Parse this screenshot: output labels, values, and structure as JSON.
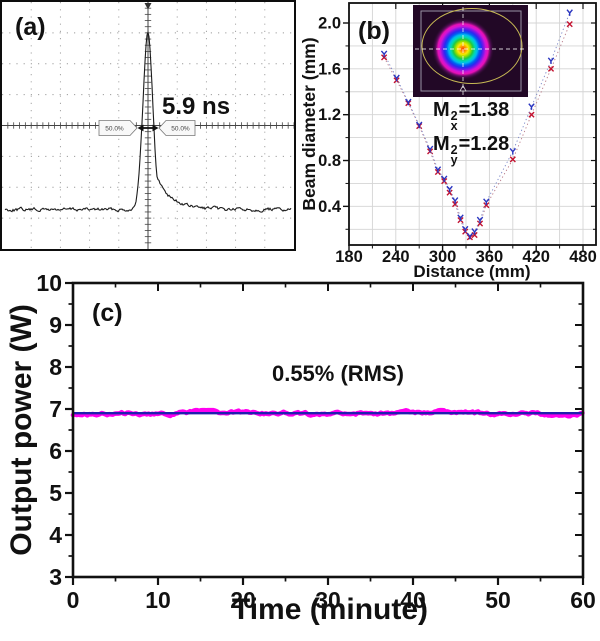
{
  "panel_a": {
    "label": "(a)",
    "pulse_width": "5.9 ns",
    "cursor_left": "50.0%",
    "cursor_right": "50.0%"
  },
  "panel_b": {
    "label": "(b)",
    "ylabel": "Beam diameter (mm)",
    "xlabel": "Distance (mm)",
    "m2x": {
      "base": "M",
      "sup": "2",
      "sub": "x",
      "eq": "=1.38"
    },
    "m2y": {
      "base": "M",
      "sup": "2",
      "sub": "y",
      "eq": "=1.28"
    }
  },
  "panel_c": {
    "label": "(c)",
    "ylabel": "Output power (W)",
    "xlabel": "Time (minute)",
    "stability": "0.55% (RMS)"
  },
  "colors": {
    "trace": "#1c1c1c",
    "series_x": "#c41230",
    "series_y": "#2a35c0",
    "connector_x": "#b87a88",
    "connector_y": "#7a86c8",
    "power_band": "#ff00f0",
    "fit_line": "#1f1fae",
    "grid_b": "#d4d4d4",
    "frame": "#111111"
  },
  "chart_data": [
    {
      "panel": "a",
      "type": "line",
      "content": "oscilloscope single pulse trace",
      "xlabel": "",
      "ylabel": "",
      "grid_divisions": {
        "x": 10,
        "y": 8
      },
      "pulse": {
        "fwhm_label": "5.9 ns",
        "half_level_labels": [
          "50.0%",
          "50.0%"
        ],
        "baseline_frac": 0.84,
        "peak_frac": 0.125,
        "center_frac": 0.5
      }
    },
    {
      "panel": "b",
      "type": "scatter",
      "xlabel": "Distance (mm)",
      "ylabel": "Beam diameter (mm)",
      "xlim": [
        180,
        497
      ],
      "ylim": [
        0.06,
        2.18
      ],
      "xticks": [
        180,
        240,
        300,
        360,
        420,
        480
      ],
      "yticks": [
        0.4,
        0.8,
        1.2,
        1.6,
        2.0
      ],
      "x_minor_step": 30,
      "y_minor_step": 0.2,
      "grid": true,
      "x": [
        225,
        241,
        256,
        270,
        284,
        294,
        302,
        309,
        316,
        323,
        329,
        335,
        341,
        348,
        356,
        390,
        414,
        439,
        463
      ],
      "series": [
        {
          "name": "Mx2",
          "marker": "x",
          "color": "#c41230",
          "values": [
            1.7,
            1.5,
            1.3,
            1.1,
            0.88,
            0.7,
            0.62,
            0.52,
            0.42,
            0.28,
            0.18,
            0.13,
            0.15,
            0.25,
            0.41,
            0.81,
            1.2,
            1.6,
            1.99
          ]
        },
        {
          "name": "My2",
          "marker": "Y",
          "color": "#2a35c0",
          "values": [
            1.73,
            1.52,
            1.31,
            1.11,
            0.9,
            0.72,
            0.64,
            0.55,
            0.45,
            0.3,
            0.2,
            0.14,
            0.18,
            0.28,
            0.44,
            0.88,
            1.27,
            1.67,
            2.09
          ]
        }
      ],
      "annotations": [
        "Mx2=1.38",
        "My2=1.28"
      ]
    },
    {
      "panel": "c",
      "type": "line",
      "xlabel": "Time (minute)",
      "ylabel": "Output power (W)",
      "xlim": [
        0,
        60
      ],
      "ylim": [
        3,
        10
      ],
      "xticks": [
        0,
        10,
        20,
        30,
        40,
        50,
        60
      ],
      "yticks": [
        3,
        4,
        5,
        6,
        7,
        8,
        9,
        10
      ],
      "x_minor_step": 5,
      "y_minor_step": 0.5,
      "grid": false,
      "mean_power_w": 6.9,
      "noise_peak_to_peak_w": 0.2,
      "fit_value_w": 6.9,
      "annotation": "0.55% (RMS)"
    }
  ]
}
